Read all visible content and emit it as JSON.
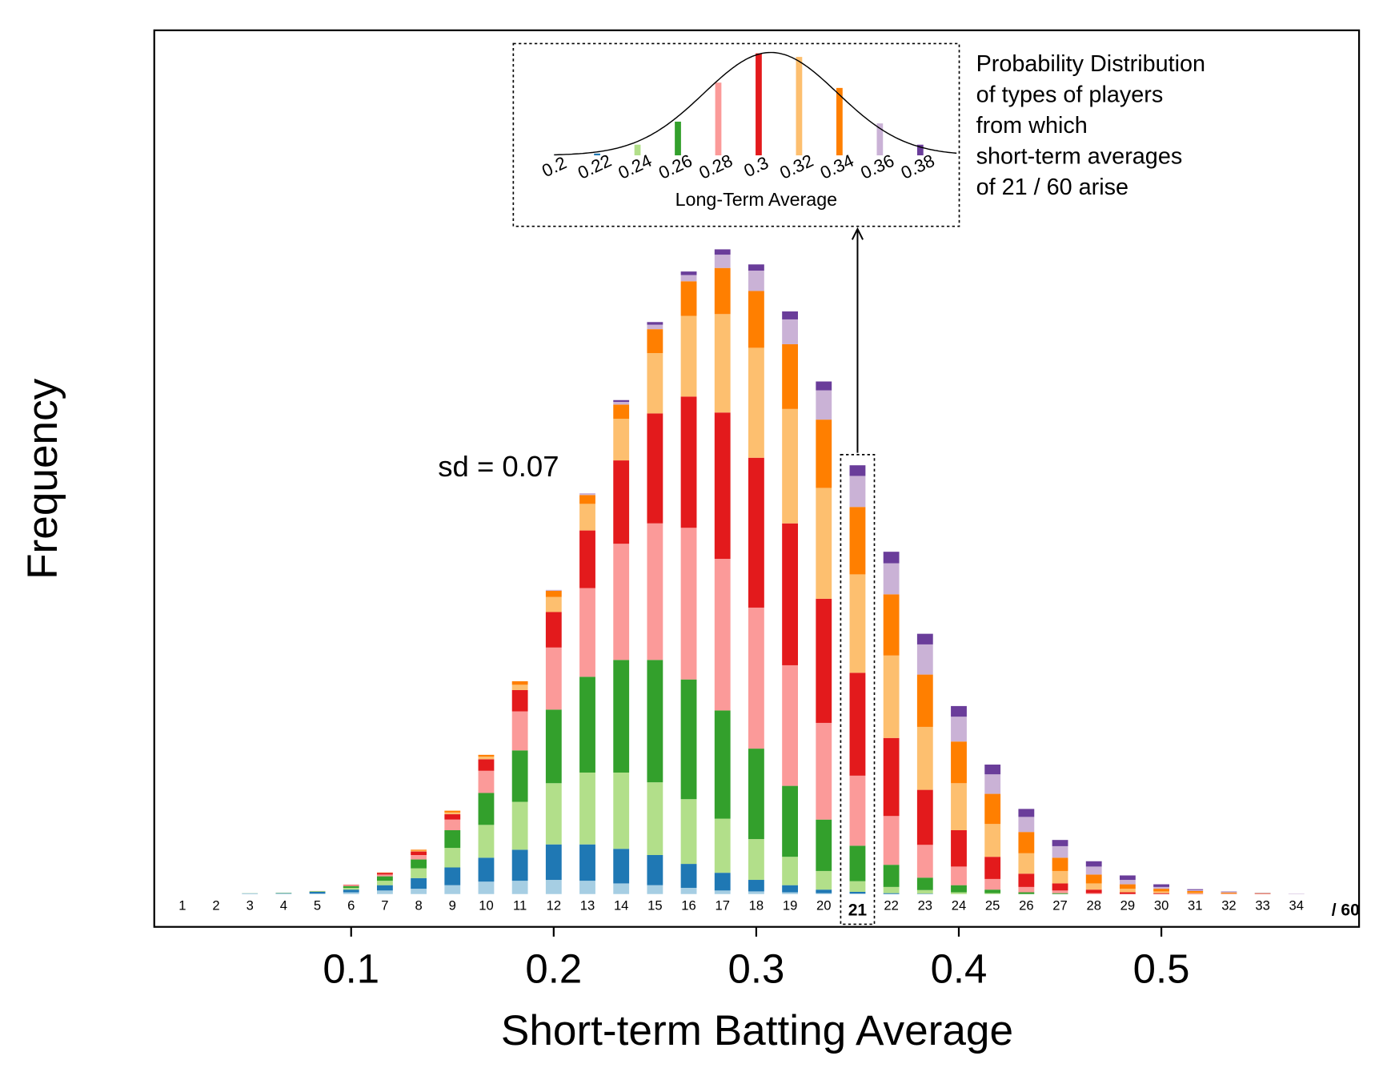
{
  "chart_data": {
    "type": "bar",
    "stacked": true,
    "xlabel": "Short-term Batting Average",
    "ylabel": "Frequency",
    "annotation": "sd = 0.07",
    "x": [
      1,
      2,
      3,
      4,
      5,
      6,
      7,
      8,
      9,
      10,
      11,
      12,
      13,
      14,
      15,
      16,
      17,
      18,
      19,
      20,
      21,
      22,
      23,
      24,
      25,
      26,
      27,
      28,
      29,
      30,
      31,
      32,
      33,
      34
    ],
    "n": 60,
    "count_suffix": "/ 60",
    "highlight": 21,
    "xlim": [
      0.0028,
      0.5976
    ],
    "xticks": [
      0.1,
      0.2,
      0.3,
      0.4,
      0.5
    ],
    "ylim": [
      -37,
      974
    ],
    "series": [
      {
        "color": "#a6cee3",
        "values": [
          0,
          0,
          0.5,
          0.5,
          0.5,
          2,
          4,
          6,
          10,
          14,
          15,
          16,
          15,
          12,
          10,
          7,
          4,
          3,
          2,
          1,
          0.5,
          0,
          0,
          0,
          0,
          0,
          0,
          0,
          0,
          0,
          0,
          0,
          0,
          0
        ]
      },
      {
        "color": "#1f78b4",
        "values": [
          0,
          0,
          0.3,
          0.5,
          2,
          3,
          6,
          12,
          20,
          27,
          35,
          40,
          41,
          39,
          34,
          27,
          20,
          13,
          8,
          4,
          2,
          1,
          0.5,
          0,
          0,
          0,
          0,
          0,
          0,
          0,
          0,
          0,
          0,
          0
        ]
      },
      {
        "color": "#b2df8a",
        "values": [
          0,
          0,
          0.2,
          0.3,
          0.5,
          2,
          5,
          11,
          22,
          37,
          54,
          69,
          81,
          86,
          82,
          73,
          61,
          46,
          32,
          21,
          12,
          7,
          4,
          2,
          1,
          0,
          0,
          0,
          0,
          0,
          0,
          0,
          0,
          0
        ]
      },
      {
        "color": "#33a02c",
        "values": [
          0,
          0,
          0,
          0.2,
          0.3,
          2,
          5,
          10,
          20,
          36,
          58,
          83,
          108,
          127,
          138,
          135,
          122,
          102,
          80,
          58,
          40,
          25,
          14,
          8,
          4,
          2,
          1,
          0,
          0,
          0,
          0,
          0,
          0,
          0
        ]
      },
      {
        "color": "#fb9a99",
        "values": [
          0,
          0,
          0,
          0,
          0.2,
          1,
          2,
          5,
          12,
          25,
          44,
          70,
          100,
          131,
          154,
          171,
          171,
          159,
          136,
          109,
          79,
          55,
          37,
          21,
          12,
          6,
          3,
          1,
          0,
          0,
          0,
          0,
          0,
          0
        ]
      },
      {
        "color": "#e31a1c",
        "values": [
          0,
          0,
          0,
          0,
          0,
          0.5,
          2,
          4,
          6,
          13,
          24,
          40,
          65,
          94,
          124,
          148,
          165,
          169,
          160,
          140,
          116,
          88,
          62,
          41,
          25,
          15,
          8,
          4,
          2,
          1,
          0.5,
          0.3,
          0.5,
          0
        ]
      },
      {
        "color": "#fdbf6f",
        "values": [
          0,
          0,
          0,
          0,
          0,
          0,
          0.5,
          1,
          2,
          3,
          6,
          17,
          30,
          47,
          68,
          91,
          111,
          124,
          129,
          125,
          111,
          93,
          71,
          53,
          37,
          23,
          14,
          7,
          4,
          2,
          1,
          0.5,
          0.2,
          0
        ]
      },
      {
        "color": "#ff7f00",
        "values": [
          0,
          0,
          0,
          0,
          0,
          0,
          0,
          1,
          2,
          2,
          4,
          7,
          10,
          16,
          27,
          39,
          52,
          64,
          73,
          77,
          76,
          69,
          59,
          47,
          34,
          24,
          15,
          10,
          5,
          3,
          2,
          1,
          0.3,
          0
        ]
      },
      {
        "color": "#cab2d6",
        "values": [
          0,
          0,
          0,
          0,
          0,
          0,
          0,
          0,
          0,
          0,
          0,
          1,
          2,
          3,
          5,
          7,
          15,
          23,
          28,
          33,
          35,
          35,
          34,
          28,
          22,
          17,
          13,
          9,
          5,
          2,
          1,
          0.5,
          0.2,
          0.5
        ]
      },
      {
        "color": "#6a3d9a",
        "values": [
          0,
          0,
          0,
          0,
          0,
          0,
          0,
          0,
          0,
          0,
          0,
          0,
          0,
          2,
          3,
          4,
          6,
          7,
          9,
          10,
          12,
          13,
          12,
          12,
          11,
          9,
          7,
          6,
          5,
          3,
          1,
          0.5,
          0.2,
          0
        ]
      }
    ],
    "inset": {
      "type": "bar",
      "xlabel": "Long-Term Average",
      "x": [
        0.2,
        0.22,
        0.24,
        0.26,
        0.28,
        0.3,
        0.32,
        0.34,
        0.36,
        0.38
      ],
      "values": [
        0.5,
        2,
        12,
        38,
        82,
        115,
        111,
        76,
        36,
        12
      ],
      "xlim": [
        0.1785,
        0.3993
      ],
      "ylim": [
        0,
        127
      ],
      "curve": {
        "mean": 0.306,
        "sd": 0.033,
        "peak": 116
      },
      "caption": [
        "Probability Distribution",
        "of types of players",
        "from which",
        "short-term averages",
        "of 21 / 60 arise"
      ]
    }
  }
}
